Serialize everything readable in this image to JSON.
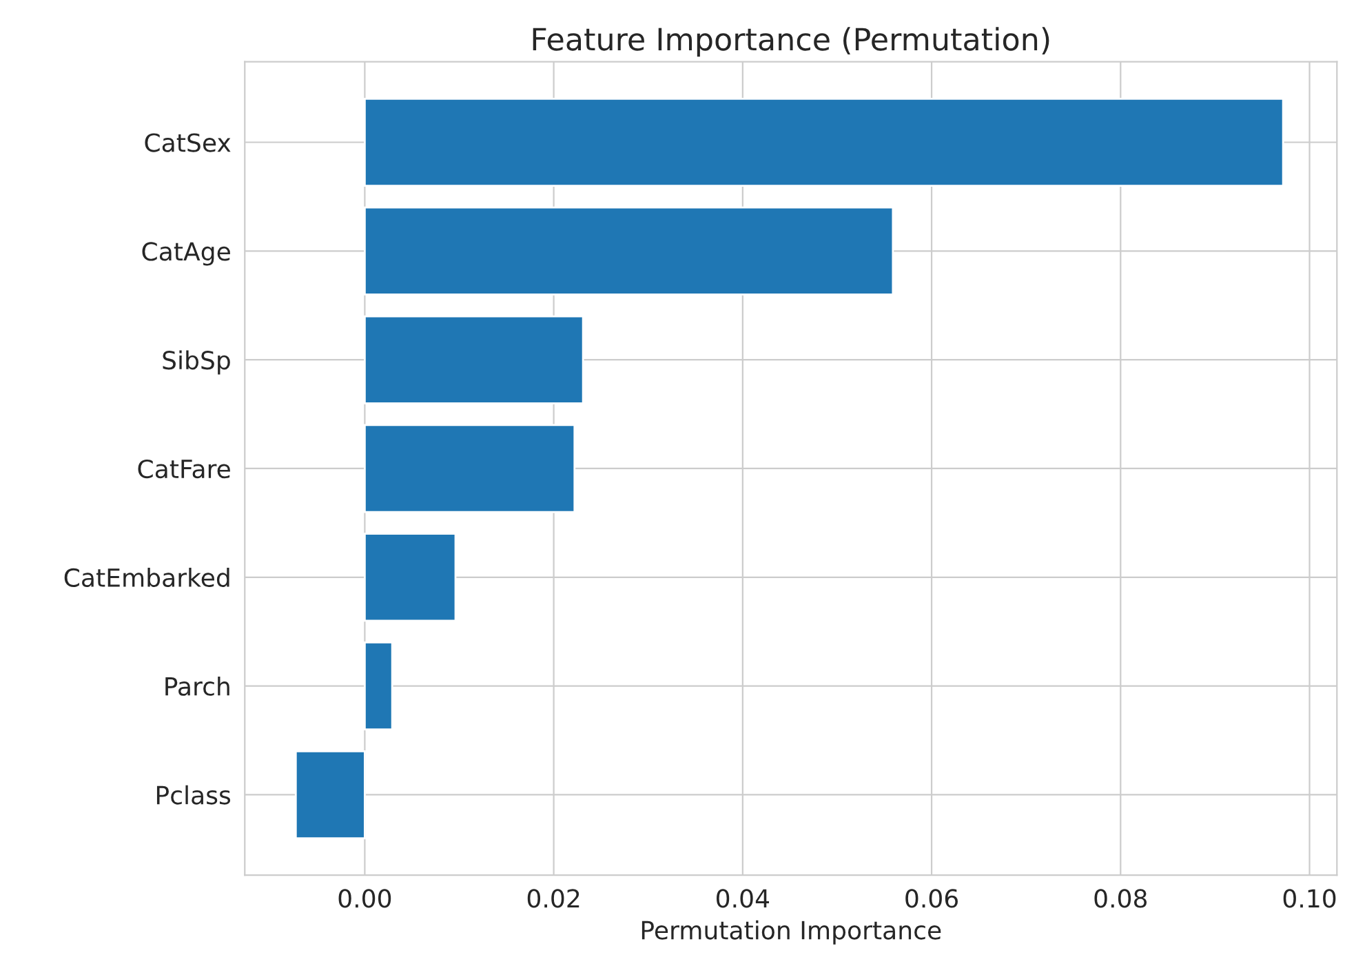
{
  "chart_data": {
    "type": "bar",
    "orientation": "horizontal",
    "title": "Feature Importance (Permutation)",
    "xlabel": "Permutation Importance",
    "categories": [
      "CatSex",
      "CatAge",
      "SibSp",
      "CatFare",
      "CatEmbarked",
      "Parch",
      "Pclass"
    ],
    "values": [
      0.0972,
      0.0559,
      0.0231,
      0.0222,
      0.0096,
      0.0029,
      -0.0073
    ],
    "color": "#1f77b4",
    "xlim": [
      -0.0127,
      0.1029
    ],
    "xticks": [
      {
        "value": 0,
        "label": "0.00"
      },
      {
        "value": 0.02,
        "label": "0.02"
      },
      {
        "value": 0.04,
        "label": "0.04"
      },
      {
        "value": 0.06,
        "label": "0.06"
      },
      {
        "value": 0.08,
        "label": "0.08"
      },
      {
        "value": 0.1,
        "label": "0.10"
      }
    ],
    "grid": true
  }
}
